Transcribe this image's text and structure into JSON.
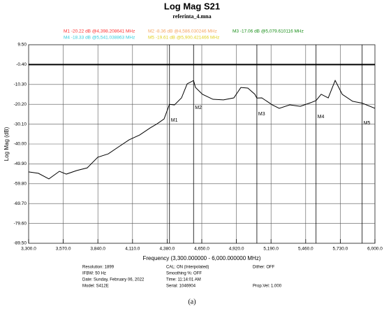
{
  "chart_data": {
    "type": "line",
    "title": "Log Mag S21",
    "subtitle": "referinta_4.mna",
    "x_label": "Frequency (3,300.000000 - 6,000.000000 MHz)",
    "y_label": "Log Mag (dB)",
    "caption": "(a)",
    "grid": true,
    "color": "#000000",
    "reference_level": -0.4,
    "xlim": [
      3300,
      6000
    ],
    "ylim": [
      -89.5,
      9.5
    ],
    "xticks": [
      {
        "value": 3300,
        "label": "3,300.0"
      },
      {
        "value": 3570,
        "label": "3,570.0"
      },
      {
        "value": 3840,
        "label": "3,840.0"
      },
      {
        "value": 4110,
        "label": "4,110.0"
      },
      {
        "value": 4380,
        "label": "4,380.0"
      },
      {
        "value": 4650,
        "label": "4,650.0"
      },
      {
        "value": 4920,
        "label": "4,920.0"
      },
      {
        "value": 5190,
        "label": "5,190.0"
      },
      {
        "value": 5460,
        "label": "5,460.0"
      },
      {
        "value": 5730,
        "label": "5,730.0"
      },
      {
        "value": 6000,
        "label": "6,000.0"
      }
    ],
    "yticks": [
      {
        "value": 9.5,
        "label": "9.50"
      },
      {
        "value": -0.4,
        "label": "-0.40"
      },
      {
        "value": -10.3,
        "label": "-10.30"
      },
      {
        "value": -20.2,
        "label": "-20.20"
      },
      {
        "value": -30.1,
        "label": "-30.10"
      },
      {
        "value": -40,
        "label": "-40.00"
      },
      {
        "value": -49.9,
        "label": "-49.90"
      },
      {
        "value": -59.8,
        "label": "-59.80"
      },
      {
        "value": -69.7,
        "label": "-69.70"
      },
      {
        "value": -79.6,
        "label": "-79.60"
      },
      {
        "value": -89.5,
        "label": "-89.50"
      }
    ],
    "x": [
      3300,
      3376,
      3458,
      3540,
      3594,
      3676,
      3757,
      3839,
      3921,
      4002,
      4084,
      4166,
      4247,
      4302,
      4356,
      4398,
      4437,
      4492,
      4536,
      4586,
      4601,
      4655,
      4737,
      4819,
      4900,
      4955,
      5009,
      5064,
      5079,
      5118,
      5200,
      5254,
      5336,
      5418,
      5499,
      5541,
      5581,
      5636,
      5690,
      5745,
      5826,
      5900,
      6000
    ],
    "values": [
      -53.9,
      -54.6,
      -57.4,
      -53.6,
      -55.0,
      -53.2,
      -51.9,
      -46.6,
      -44.9,
      -41.4,
      -37.9,
      -35.5,
      -32.0,
      -29.9,
      -27.5,
      -20.22,
      -20.5,
      -17.0,
      -10.0,
      -8.36,
      -11.8,
      -15.2,
      -17.7,
      -18.0,
      -17.0,
      -11.8,
      -12.1,
      -15.2,
      -17.06,
      -17.0,
      -20.5,
      -22.2,
      -20.5,
      -21.2,
      -19.4,
      -18.33,
      -15.2,
      -17.0,
      -8.3,
      -15.2,
      -18.7,
      -19.61,
      -22.2
    ],
    "markers": [
      {
        "name": "M1",
        "x": 4398.208641,
        "label": "M1 -20.22 dB @4,398.208641 MHz",
        "color": "#ff3030"
      },
      {
        "name": "M2",
        "x": 4586.030246,
        "label": "M2 -8.36 dB @4,586.030246 MHz",
        "color": "#f4a460"
      },
      {
        "name": "M3",
        "x": 5079.610116,
        "label": "M3 -17.06 dB @5,079.610116 MHz",
        "color": "#1a8f1a"
      },
      {
        "name": "M4",
        "x": 5541.038863,
        "label": "M4 -18.33 dB @5,541.038863 MHz",
        "color": "#33ccdd"
      },
      {
        "name": "M5",
        "x": 5900.421466,
        "label": "M5 -19.61 dB @5,900.421466 MHz",
        "color": "#e0d020"
      }
    ],
    "info": [
      "Resolution: 1899",
      "IFBW: 50 Hz",
      "Date: Sunday, February 06, 2022",
      "Model: S412E",
      "CAL: ON (Interpolated)",
      "Smoothing %: OFF",
      "Time: 11:14:01 AM",
      "Serial: 1046904",
      "Dither: OFF",
      "Prop.Vel: 1.000"
    ]
  }
}
